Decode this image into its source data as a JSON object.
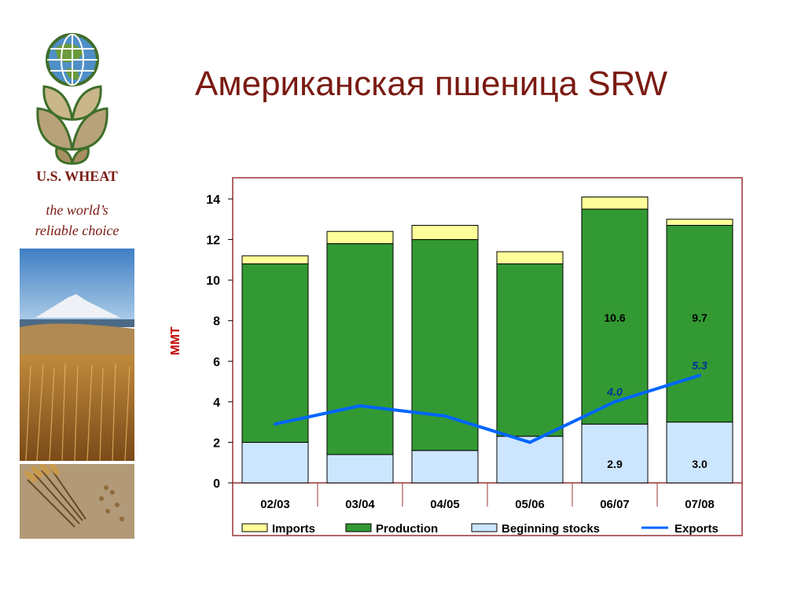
{
  "slide": {
    "title": "Американская пшеница SRW",
    "brand_name": "U.S. WHEAT",
    "tagline_line1": "the world’s",
    "tagline_line2": "reliable choice"
  },
  "colors": {
    "title": "#7a1b12",
    "imports": "#ffff99",
    "production": "#339933",
    "beginning_stocks": "#cce6ff",
    "exports": "#0066ff",
    "frame": "#993333"
  },
  "icons": [
    "globe-wheat-logo",
    "mountain-wheat-field-photo",
    "wheat-sheaf-photo"
  ],
  "chart_data": {
    "type": "bar",
    "stacked": true,
    "categories": [
      "02/03",
      "03/04",
      "04/05",
      "05/06",
      "06/07",
      "07/08"
    ],
    "ylabel": "MMT",
    "ylim": [
      0,
      14
    ],
    "yticks": [
      "0",
      "2",
      "4",
      "6",
      "8",
      "10",
      "12",
      "14"
    ],
    "grid": false,
    "legend_position": "bottom",
    "series": [
      {
        "name": "Beginning stocks",
        "kind": "bar",
        "values": [
          2.0,
          1.4,
          1.6,
          2.3,
          2.9,
          3.0
        ]
      },
      {
        "name": "Production",
        "kind": "bar",
        "values": [
          8.8,
          10.4,
          10.4,
          8.5,
          10.6,
          9.7
        ]
      },
      {
        "name": "Imports",
        "kind": "bar",
        "values": [
          0.4,
          0.6,
          0.7,
          0.6,
          0.6,
          0.3
        ]
      },
      {
        "name": "Exports",
        "kind": "line",
        "values": [
          2.9,
          3.8,
          3.3,
          2.0,
          4.0,
          5.3
        ]
      }
    ],
    "data_labels": [
      {
        "series": "Production",
        "category": "06/07",
        "text": "10.6"
      },
      {
        "series": "Production",
        "category": "07/08",
        "text": "9.7"
      },
      {
        "series": "Beginning stocks",
        "category": "06/07",
        "text": "2.9"
      },
      {
        "series": "Beginning stocks",
        "category": "07/08",
        "text": "3.0"
      },
      {
        "series": "Exports",
        "category": "06/07",
        "text": "4.0"
      },
      {
        "series": "Exports",
        "category": "07/08",
        "text": "5.3"
      }
    ]
  }
}
